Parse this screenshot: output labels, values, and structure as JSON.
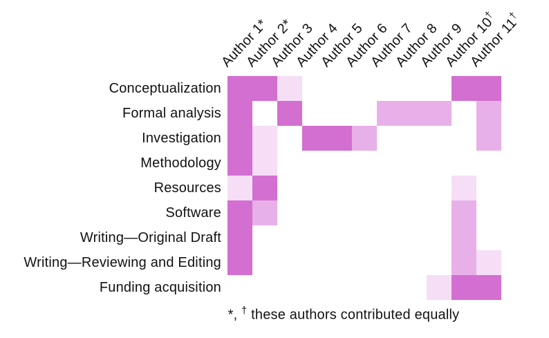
{
  "figure": {
    "title": "",
    "footnote": {
      "star": "*,",
      "dagger": "†",
      "text": "these authors contributed equally"
    }
  },
  "colors": {
    "background": "#ffffff",
    "text": "#111111",
    "palette": {
      "0": "#ffffff",
      "1": "#f6def6",
      "2": "#e8b0e8",
      "3": "#d36fd0"
    }
  },
  "chart_data": {
    "type": "heatmap",
    "title": "",
    "legend": "none",
    "x_label_rotation_deg": 45,
    "x_categories": [
      "Author 1*",
      "Author 2*",
      "Author 3",
      "Author 4",
      "Author 5",
      "Author 6",
      "Author 7",
      "Author 8",
      "Author 9",
      "Author 10†",
      "Author 11†"
    ],
    "authors": [
      {
        "label": "Author 1",
        "marker": "*"
      },
      {
        "label": "Author 2",
        "marker": "*"
      },
      {
        "label": "Author 3",
        "marker": ""
      },
      {
        "label": "Author 4",
        "marker": ""
      },
      {
        "label": "Author 5",
        "marker": ""
      },
      {
        "label": "Author 6",
        "marker": ""
      },
      {
        "label": "Author 7",
        "marker": ""
      },
      {
        "label": "Author 8",
        "marker": ""
      },
      {
        "label": "Author 9",
        "marker": ""
      },
      {
        "label": "Author 10",
        "marker": "†"
      },
      {
        "label": "Author 11",
        "marker": "†"
      }
    ],
    "y_categories": [
      "Conceptualization",
      "Formal analysis",
      "Investigation",
      "Methodology",
      "Resources",
      "Software",
      "Writing—Original Draft",
      "Writing—Reviewing and Editing",
      "Funding acquisition"
    ],
    "matrix": [
      [
        3,
        3,
        1,
        0,
        0,
        0,
        0,
        0,
        0,
        3,
        3
      ],
      [
        3,
        0,
        3,
        0,
        0,
        0,
        2,
        2,
        2,
        0,
        2
      ],
      [
        3,
        1,
        0,
        3,
        3,
        2,
        0,
        0,
        0,
        0,
        2
      ],
      [
        3,
        1,
        0,
        0,
        0,
        0,
        0,
        0,
        0,
        0,
        0
      ],
      [
        1,
        3,
        0,
        0,
        0,
        0,
        0,
        0,
        0,
        1,
        0
      ],
      [
        3,
        2,
        0,
        0,
        0,
        0,
        0,
        0,
        0,
        2,
        0
      ],
      [
        3,
        0,
        0,
        0,
        0,
        0,
        0,
        0,
        0,
        2,
        0
      ],
      [
        3,
        0,
        0,
        0,
        0,
        0,
        0,
        0,
        0,
        2,
        1
      ],
      [
        0,
        0,
        0,
        0,
        0,
        0,
        0,
        0,
        1,
        3,
        3
      ]
    ],
    "annotations": [
      "*, † these authors contributed equally"
    ]
  }
}
